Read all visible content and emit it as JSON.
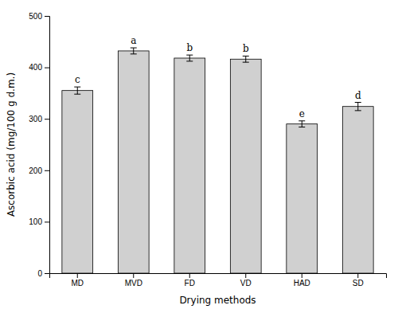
{
  "chart_data": {
    "type": "bar",
    "xlabel": "Drying methods",
    "ylabel": "Ascorbic acid (mg/100 g d.m.)",
    "categories": [
      "MD",
      "MVD",
      "FD",
      "VD",
      "HAD",
      "SD"
    ],
    "values": [
      355,
      432,
      418,
      416,
      290,
      324
    ],
    "errors": [
      7,
      6,
      6,
      6,
      6,
      8
    ],
    "annotations": [
      "c",
      "a",
      "b",
      "b",
      "e",
      "d"
    ],
    "color": "#d0d0d0",
    "ylim": [
      0,
      500
    ],
    "yticks": [
      0,
      100,
      200,
      300,
      400,
      500
    ],
    "grid": false
  }
}
